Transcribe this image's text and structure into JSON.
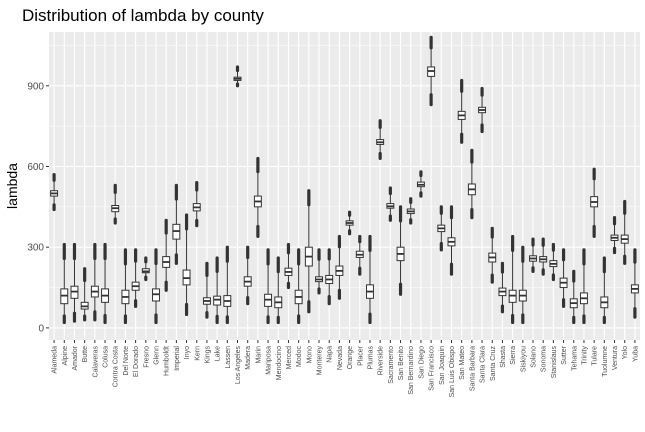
{
  "chart_data": {
    "type": "boxplot",
    "title": "Distribution of lambda by county",
    "xlabel": "",
    "ylabel": "lambda",
    "ylim": [
      -45,
      1100
    ],
    "yticks": [
      0,
      300,
      600,
      900
    ],
    "grid": true,
    "colors": {
      "panel": "#ebebeb",
      "grid_major": "#ffffff",
      "box_fill": "#ffffff",
      "box_line": "#333333"
    },
    "categories": [
      "Alameda",
      "Alpine",
      "Amador",
      "Butte",
      "Calaveras",
      "Colusa",
      "Contra Costa",
      "Del Norte",
      "El Dorado",
      "Fresno",
      "Glenn",
      "Humboldt",
      "Imperial",
      "Inyo",
      "Kern",
      "Kings",
      "Lake",
      "Lassen",
      "Los Angeles",
      "Madera",
      "Marin",
      "Mariposa",
      "Mendocino",
      "Merced",
      "Modoc",
      "Mono",
      "Monterey",
      "Napa",
      "Nevada",
      "Orange",
      "Placer",
      "Plumas",
      "Riverside",
      "Sacramento",
      "San Benito",
      "San Bernardino",
      "San Diego",
      "San Francisco",
      "San Joaquin",
      "San Luis Obispo",
      "San Mateo",
      "Santa Barbara",
      "Santa Clara",
      "Santa Cruz",
      "Shasta",
      "Sierra",
      "Siskiyou",
      "Solano",
      "Sonoma",
      "Stanislaus",
      "Sutter",
      "Tehama",
      "Trinity",
      "Tulare",
      "Tuolumne",
      "Ventura",
      "Yolo",
      "Yuba"
    ],
    "boxes": [
      {
        "q1": 490,
        "median": 500,
        "q3": 510,
        "low": 440,
        "high": 570
      },
      {
        "q1": 90,
        "median": 120,
        "q3": 145,
        "low": 20,
        "high": 310
      },
      {
        "q1": 110,
        "median": 135,
        "q3": 155,
        "low": 25,
        "high": 310
      },
      {
        "q1": 70,
        "median": 80,
        "q3": 95,
        "low": 30,
        "high": 220
      },
      {
        "q1": 115,
        "median": 135,
        "q3": 155,
        "low": 30,
        "high": 310
      },
      {
        "q1": 95,
        "median": 120,
        "q3": 145,
        "low": 20,
        "high": 310
      },
      {
        "q1": 432,
        "median": 445,
        "q3": 455,
        "low": 390,
        "high": 530
      },
      {
        "q1": 90,
        "median": 115,
        "q3": 140,
        "low": 20,
        "high": 290
      },
      {
        "q1": 140,
        "median": 155,
        "q3": 170,
        "low": 80,
        "high": 290
      },
      {
        "q1": 205,
        "median": 210,
        "q3": 220,
        "low": 180,
        "high": 260
      },
      {
        "q1": 100,
        "median": 125,
        "q3": 145,
        "low": 20,
        "high": 290
      },
      {
        "q1": 225,
        "median": 245,
        "q3": 265,
        "low": 140,
        "high": 400
      },
      {
        "q1": 330,
        "median": 360,
        "q3": 385,
        "low": 240,
        "high": 530
      },
      {
        "q1": 160,
        "median": 185,
        "q3": 215,
        "low": 50,
        "high": 420
      },
      {
        "q1": 435,
        "median": 448,
        "q3": 462,
        "low": 380,
        "high": 540
      },
      {
        "q1": 88,
        "median": 100,
        "q3": 112,
        "low": 40,
        "high": 240
      },
      {
        "q1": 85,
        "median": 105,
        "q3": 118,
        "low": 20,
        "high": 260
      },
      {
        "q1": 80,
        "median": 100,
        "q3": 120,
        "low": 20,
        "high": 300
      },
      {
        "q1": 920,
        "median": 926,
        "q3": 932,
        "low": 900,
        "high": 970
      },
      {
        "q1": 155,
        "median": 172,
        "q3": 190,
        "low": 90,
        "high": 300
      },
      {
        "q1": 450,
        "median": 470,
        "q3": 490,
        "low": 340,
        "high": 630
      },
      {
        "q1": 80,
        "median": 105,
        "q3": 125,
        "low": 20,
        "high": 290
      },
      {
        "q1": 75,
        "median": 95,
        "q3": 115,
        "low": 20,
        "high": 260
      },
      {
        "q1": 195,
        "median": 208,
        "q3": 222,
        "low": 150,
        "high": 310
      },
      {
        "q1": 90,
        "median": 115,
        "q3": 140,
        "low": 20,
        "high": 290
      },
      {
        "q1": 230,
        "median": 265,
        "q3": 300,
        "low": 60,
        "high": 510
      },
      {
        "q1": 172,
        "median": 180,
        "q3": 190,
        "low": 130,
        "high": 290
      },
      {
        "q1": 165,
        "median": 180,
        "q3": 195,
        "low": 90,
        "high": 290
      },
      {
        "q1": 195,
        "median": 212,
        "q3": 230,
        "low": 110,
        "high": 340
      },
      {
        "q1": 382,
        "median": 390,
        "q3": 398,
        "low": 350,
        "high": 430
      },
      {
        "q1": 262,
        "median": 272,
        "q3": 285,
        "low": 200,
        "high": 340
      },
      {
        "q1": 110,
        "median": 135,
        "q3": 160,
        "low": 20,
        "high": 340
      },
      {
        "q1": 682,
        "median": 690,
        "q3": 700,
        "low": 630,
        "high": 770
      },
      {
        "q1": 445,
        "median": 452,
        "q3": 462,
        "low": 400,
        "high": 520
      },
      {
        "q1": 250,
        "median": 275,
        "q3": 300,
        "low": 125,
        "high": 450
      },
      {
        "q1": 425,
        "median": 433,
        "q3": 442,
        "low": 390,
        "high": 480
      },
      {
        "q1": 525,
        "median": 532,
        "q3": 542,
        "low": 490,
        "high": 580
      },
      {
        "q1": 935,
        "median": 955,
        "q3": 970,
        "low": 830,
        "high": 1080
      },
      {
        "q1": 358,
        "median": 370,
        "q3": 382,
        "low": 290,
        "high": 450
      },
      {
        "q1": 305,
        "median": 320,
        "q3": 335,
        "low": 200,
        "high": 450
      },
      {
        "q1": 775,
        "median": 790,
        "q3": 805,
        "low": 690,
        "high": 920
      },
      {
        "q1": 495,
        "median": 515,
        "q3": 535,
        "low": 410,
        "high": 660
      },
      {
        "q1": 800,
        "median": 810,
        "q3": 820,
        "low": 730,
        "high": 890
      },
      {
        "q1": 245,
        "median": 262,
        "q3": 278,
        "low": 170,
        "high": 370
      },
      {
        "q1": 120,
        "median": 135,
        "q3": 148,
        "low": 60,
        "high": 240
      },
      {
        "q1": 95,
        "median": 120,
        "q3": 140,
        "low": 20,
        "high": 340
      },
      {
        "q1": 100,
        "median": 120,
        "q3": 140,
        "low": 20,
        "high": 300
      },
      {
        "q1": 248,
        "median": 258,
        "q3": 268,
        "low": 210,
        "high": 330
      },
      {
        "q1": 245,
        "median": 255,
        "q3": 265,
        "low": 200,
        "high": 330
      },
      {
        "q1": 228,
        "median": 238,
        "q3": 250,
        "low": 180,
        "high": 310
      },
      {
        "q1": 150,
        "median": 168,
        "q3": 185,
        "low": 80,
        "high": 290
      },
      {
        "q1": 75,
        "median": 92,
        "q3": 108,
        "low": 20,
        "high": 210
      },
      {
        "q1": 90,
        "median": 110,
        "q3": 130,
        "low": 20,
        "high": 290
      },
      {
        "q1": 450,
        "median": 468,
        "q3": 488,
        "low": 340,
        "high": 590
      },
      {
        "q1": 75,
        "median": 95,
        "q3": 115,
        "low": 20,
        "high": 260
      },
      {
        "q1": 325,
        "median": 335,
        "q3": 345,
        "low": 280,
        "high": 410
      },
      {
        "q1": 315,
        "median": 330,
        "q3": 345,
        "low": 240,
        "high": 470
      },
      {
        "q1": 130,
        "median": 145,
        "q3": 160,
        "low": 40,
        "high": 290
      }
    ]
  }
}
